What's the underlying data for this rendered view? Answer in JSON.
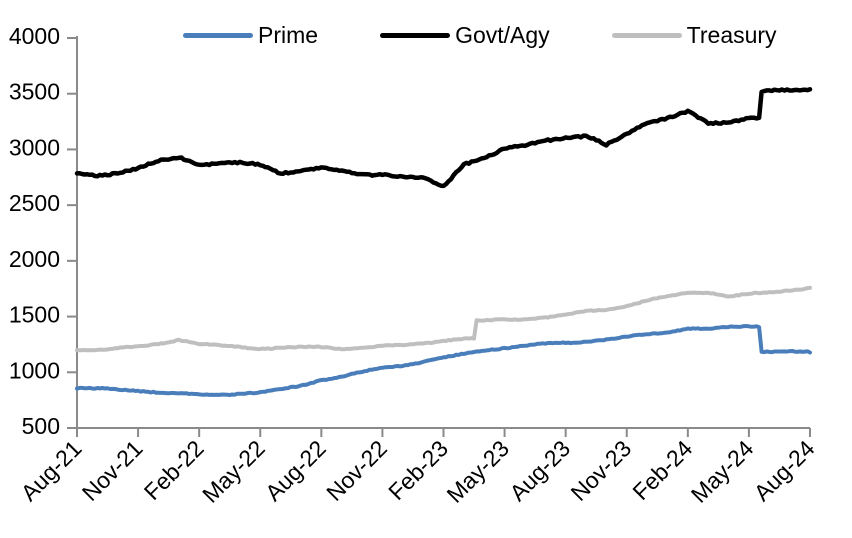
{
  "chart_data": {
    "type": "line",
    "title": "",
    "xlabel": "",
    "ylabel": "",
    "ylim": [
      500,
      4000
    ],
    "y_ticks": [
      500,
      1000,
      1500,
      2000,
      2500,
      3000,
      3500,
      4000
    ],
    "x_tick_labels": [
      "Aug-21",
      "Nov-21",
      "Feb-22",
      "May-22",
      "Aug-22",
      "Nov-22",
      "Feb-23",
      "May-23",
      "Aug-23",
      "Nov-23",
      "Feb-24",
      "May-24",
      "Aug-24"
    ],
    "categories": [
      "Aug-21",
      "Sep-21",
      "Oct-21",
      "Nov-21",
      "Dec-21",
      "Jan-22",
      "Feb-22",
      "Mar-22",
      "Apr-22",
      "May-22",
      "Jun-22",
      "Jul-22",
      "Aug-22",
      "Sep-22",
      "Oct-22",
      "Nov-22",
      "Dec-22",
      "Jan-23",
      "Feb-23",
      "Mar-23",
      "Apr-23",
      "May-23",
      "Jun-23",
      "Jul-23",
      "Aug-23",
      "Sep-23",
      "Oct-23",
      "Nov-23",
      "Dec-23",
      "Jan-24",
      "Feb-24",
      "Mar-24",
      "Apr-24",
      "May-24",
      "Jun-24",
      "Jul-24",
      "Aug-24"
    ],
    "series": [
      {
        "name": "Prime",
        "color": "#4a7ebb",
        "values": [
          858,
          850,
          845,
          838,
          822,
          806,
          798,
          800,
          812,
          818,
          842,
          880,
          935,
          962,
          1000,
          1038,
          1065,
          1095,
          1130,
          1160,
          1200,
          1222,
          1238,
          1252,
          1265,
          1278,
          1295,
          1315,
          1338,
          1360,
          1398,
          1388,
          1402,
          1415,
          1190,
          1186,
          1178
        ],
        "step_jump_after": [
          "May-24"
        ]
      },
      {
        "name": "Govt/Agy",
        "color": "#000000",
        "values": [
          2780,
          2770,
          2800,
          2830,
          2885,
          2930,
          2870,
          2885,
          2870,
          2855,
          2795,
          2820,
          2830,
          2800,
          2780,
          2785,
          2755,
          2730,
          2665,
          2880,
          2925,
          2995,
          3030,
          3090,
          3110,
          3115,
          3030,
          3140,
          3255,
          3280,
          3330,
          3230,
          3255,
          3285,
          3515,
          3525,
          3540
        ],
        "step_jump_after": [
          "May-24"
        ]
      },
      {
        "name": "Treasury",
        "color": "#bfbfbf",
        "values": [
          1205,
          1200,
          1212,
          1228,
          1258,
          1295,
          1252,
          1235,
          1228,
          1215,
          1220,
          1222,
          1225,
          1215,
          1225,
          1232,
          1242,
          1262,
          1288,
          1300,
          1460,
          1475,
          1482,
          1492,
          1512,
          1548,
          1565,
          1598,
          1640,
          1680,
          1715,
          1722,
          1675,
          1700,
          1718,
          1740,
          1758
        ],
        "step_jump_after": [
          "Mar-23"
        ]
      }
    ],
    "grid": false,
    "legend_position": "top",
    "axis_color": "#8a8a8a",
    "text_color": "#000000"
  }
}
